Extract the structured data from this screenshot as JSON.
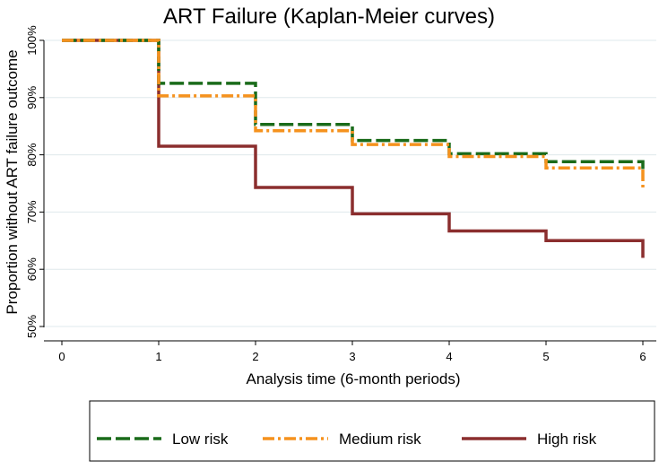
{
  "chart_data": {
    "type": "line",
    "step": true,
    "title": "ART Failure (Kaplan-Meier curves)",
    "xlabel": "Analysis time (6-month periods)",
    "ylabel": "Proportion without ART failure outcome",
    "xlim": [
      0,
      6
    ],
    "ylim": [
      0.5,
      1.0
    ],
    "x_ticks": [
      0,
      1,
      2,
      3,
      4,
      5,
      6
    ],
    "x_tick_labels": [
      "0",
      "1",
      "2",
      "3",
      "4",
      "5",
      "6"
    ],
    "y_ticks": [
      0.5,
      0.6,
      0.7,
      0.8,
      0.9,
      1.0
    ],
    "y_tick_labels": [
      "50%",
      "60%",
      "70%",
      "80%",
      "90%",
      "100%"
    ],
    "grid": "horizontal",
    "legend_position": "bottom",
    "series": [
      {
        "name": "Low risk",
        "color": "#1a6b1a",
        "line_style": "long-dash",
        "x": [
          0,
          1,
          2,
          3,
          4,
          5,
          6
        ],
        "y": [
          1.0,
          0.925,
          0.853,
          0.825,
          0.802,
          0.788,
          0.788
        ],
        "end_drop": 0.775
      },
      {
        "name": "Medium risk",
        "color": "#f5921e",
        "line_style": "dash-dot",
        "x": [
          0,
          1,
          2,
          3,
          4,
          5,
          6
        ],
        "y": [
          1.0,
          0.903,
          0.842,
          0.818,
          0.797,
          0.777,
          0.777
        ],
        "end_drop": 0.74
      },
      {
        "name": "High risk",
        "color": "#8b2e2e",
        "line_style": "solid",
        "x": [
          0,
          1,
          2,
          3,
          4,
          5,
          6
        ],
        "y": [
          1.0,
          0.815,
          0.743,
          0.697,
          0.667,
          0.65,
          0.65
        ],
        "end_drop": 0.62
      }
    ]
  }
}
